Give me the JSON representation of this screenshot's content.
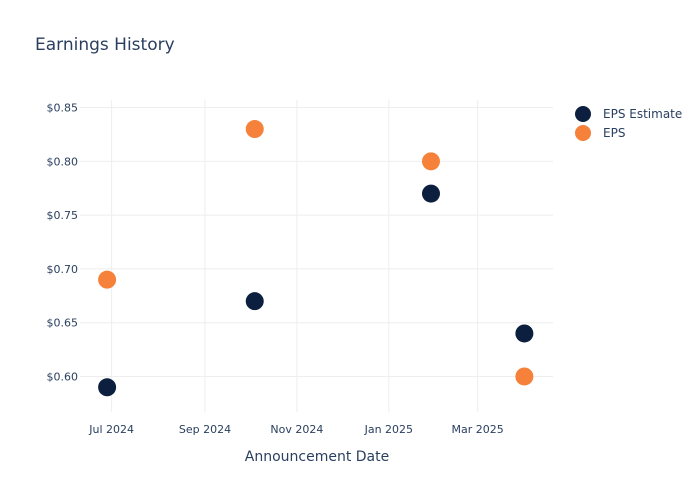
{
  "chart_data": {
    "type": "scatter",
    "title": "Earnings History",
    "xlabel": "Announcement Date",
    "ylabel": "",
    "x_ticks": [
      {
        "date": "2024-07-01",
        "label": "Jul 2024"
      },
      {
        "date": "2024-09-01",
        "label": "Sep 2024"
      },
      {
        "date": "2024-11-01",
        "label": "Nov 2024"
      },
      {
        "date": "2025-01-01",
        "label": "Jan 2025"
      },
      {
        "date": "2025-03-01",
        "label": "Mar 2025"
      }
    ],
    "y_ticks": [
      {
        "value": 0.6,
        "label": "$0.60"
      },
      {
        "value": 0.65,
        "label": "$0.65"
      },
      {
        "value": 0.7,
        "label": "$0.70"
      },
      {
        "value": 0.75,
        "label": "$0.75"
      },
      {
        "value": 0.8,
        "label": "$0.80"
      },
      {
        "value": 0.85,
        "label": "$0.85"
      }
    ],
    "xlim": [
      "2024-06-10",
      "2025-04-20"
    ],
    "ylim": [
      0.567,
      0.857
    ],
    "grid": true,
    "legend_position": "top-right",
    "series": [
      {
        "name": "EPS Estimate",
        "color": "#0c1f3f",
        "points": [
          {
            "x": "2024-06-28",
            "y": 0.59
          },
          {
            "x": "2024-10-04",
            "y": 0.67
          },
          {
            "x": "2025-01-29",
            "y": 0.77
          },
          {
            "x": "2025-04-01",
            "y": 0.64
          }
        ]
      },
      {
        "name": "EPS",
        "color": "#f5813a",
        "points": [
          {
            "x": "2024-06-28",
            "y": 0.69
          },
          {
            "x": "2024-10-04",
            "y": 0.83
          },
          {
            "x": "2025-01-29",
            "y": 0.8
          },
          {
            "x": "2025-04-01",
            "y": 0.6
          }
        ]
      }
    ]
  }
}
